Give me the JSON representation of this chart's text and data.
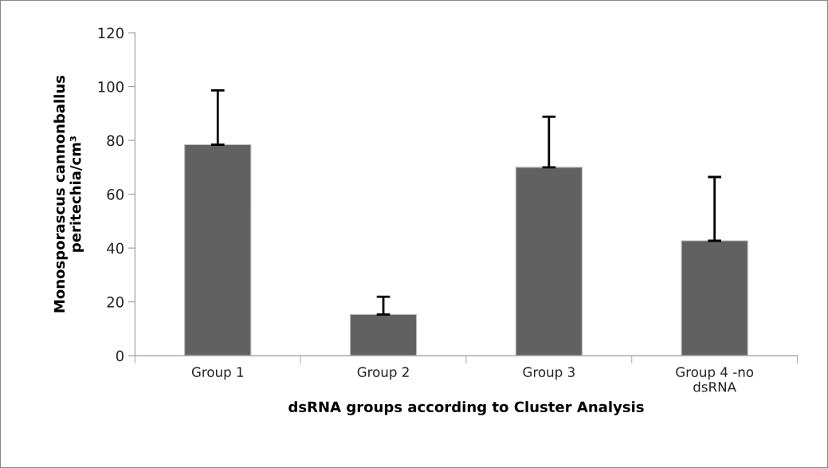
{
  "chart_data": {
    "type": "bar",
    "xlabel": "dsRNA groups according to Cluster Analysis",
    "ylabel": "Monosporascus cannonballus\nperitechia/cm³",
    "categories": [
      "Group 1",
      "Group 2",
      "Group 3",
      "Group 4 -no\ndsRNA"
    ],
    "values": [
      78.4,
      15.3,
      70.0,
      42.7
    ],
    "errors": [
      [
        78.4,
        98.6
      ],
      [
        15.3,
        21.9
      ],
      [
        70.0,
        88.8
      ],
      [
        42.7,
        66.4
      ]
    ],
    "color": "#616161",
    "ylim": [
      0,
      120
    ],
    "yticks": [
      0,
      20,
      40,
      60,
      80,
      100,
      120
    ],
    "grid": false,
    "legend": false
  }
}
